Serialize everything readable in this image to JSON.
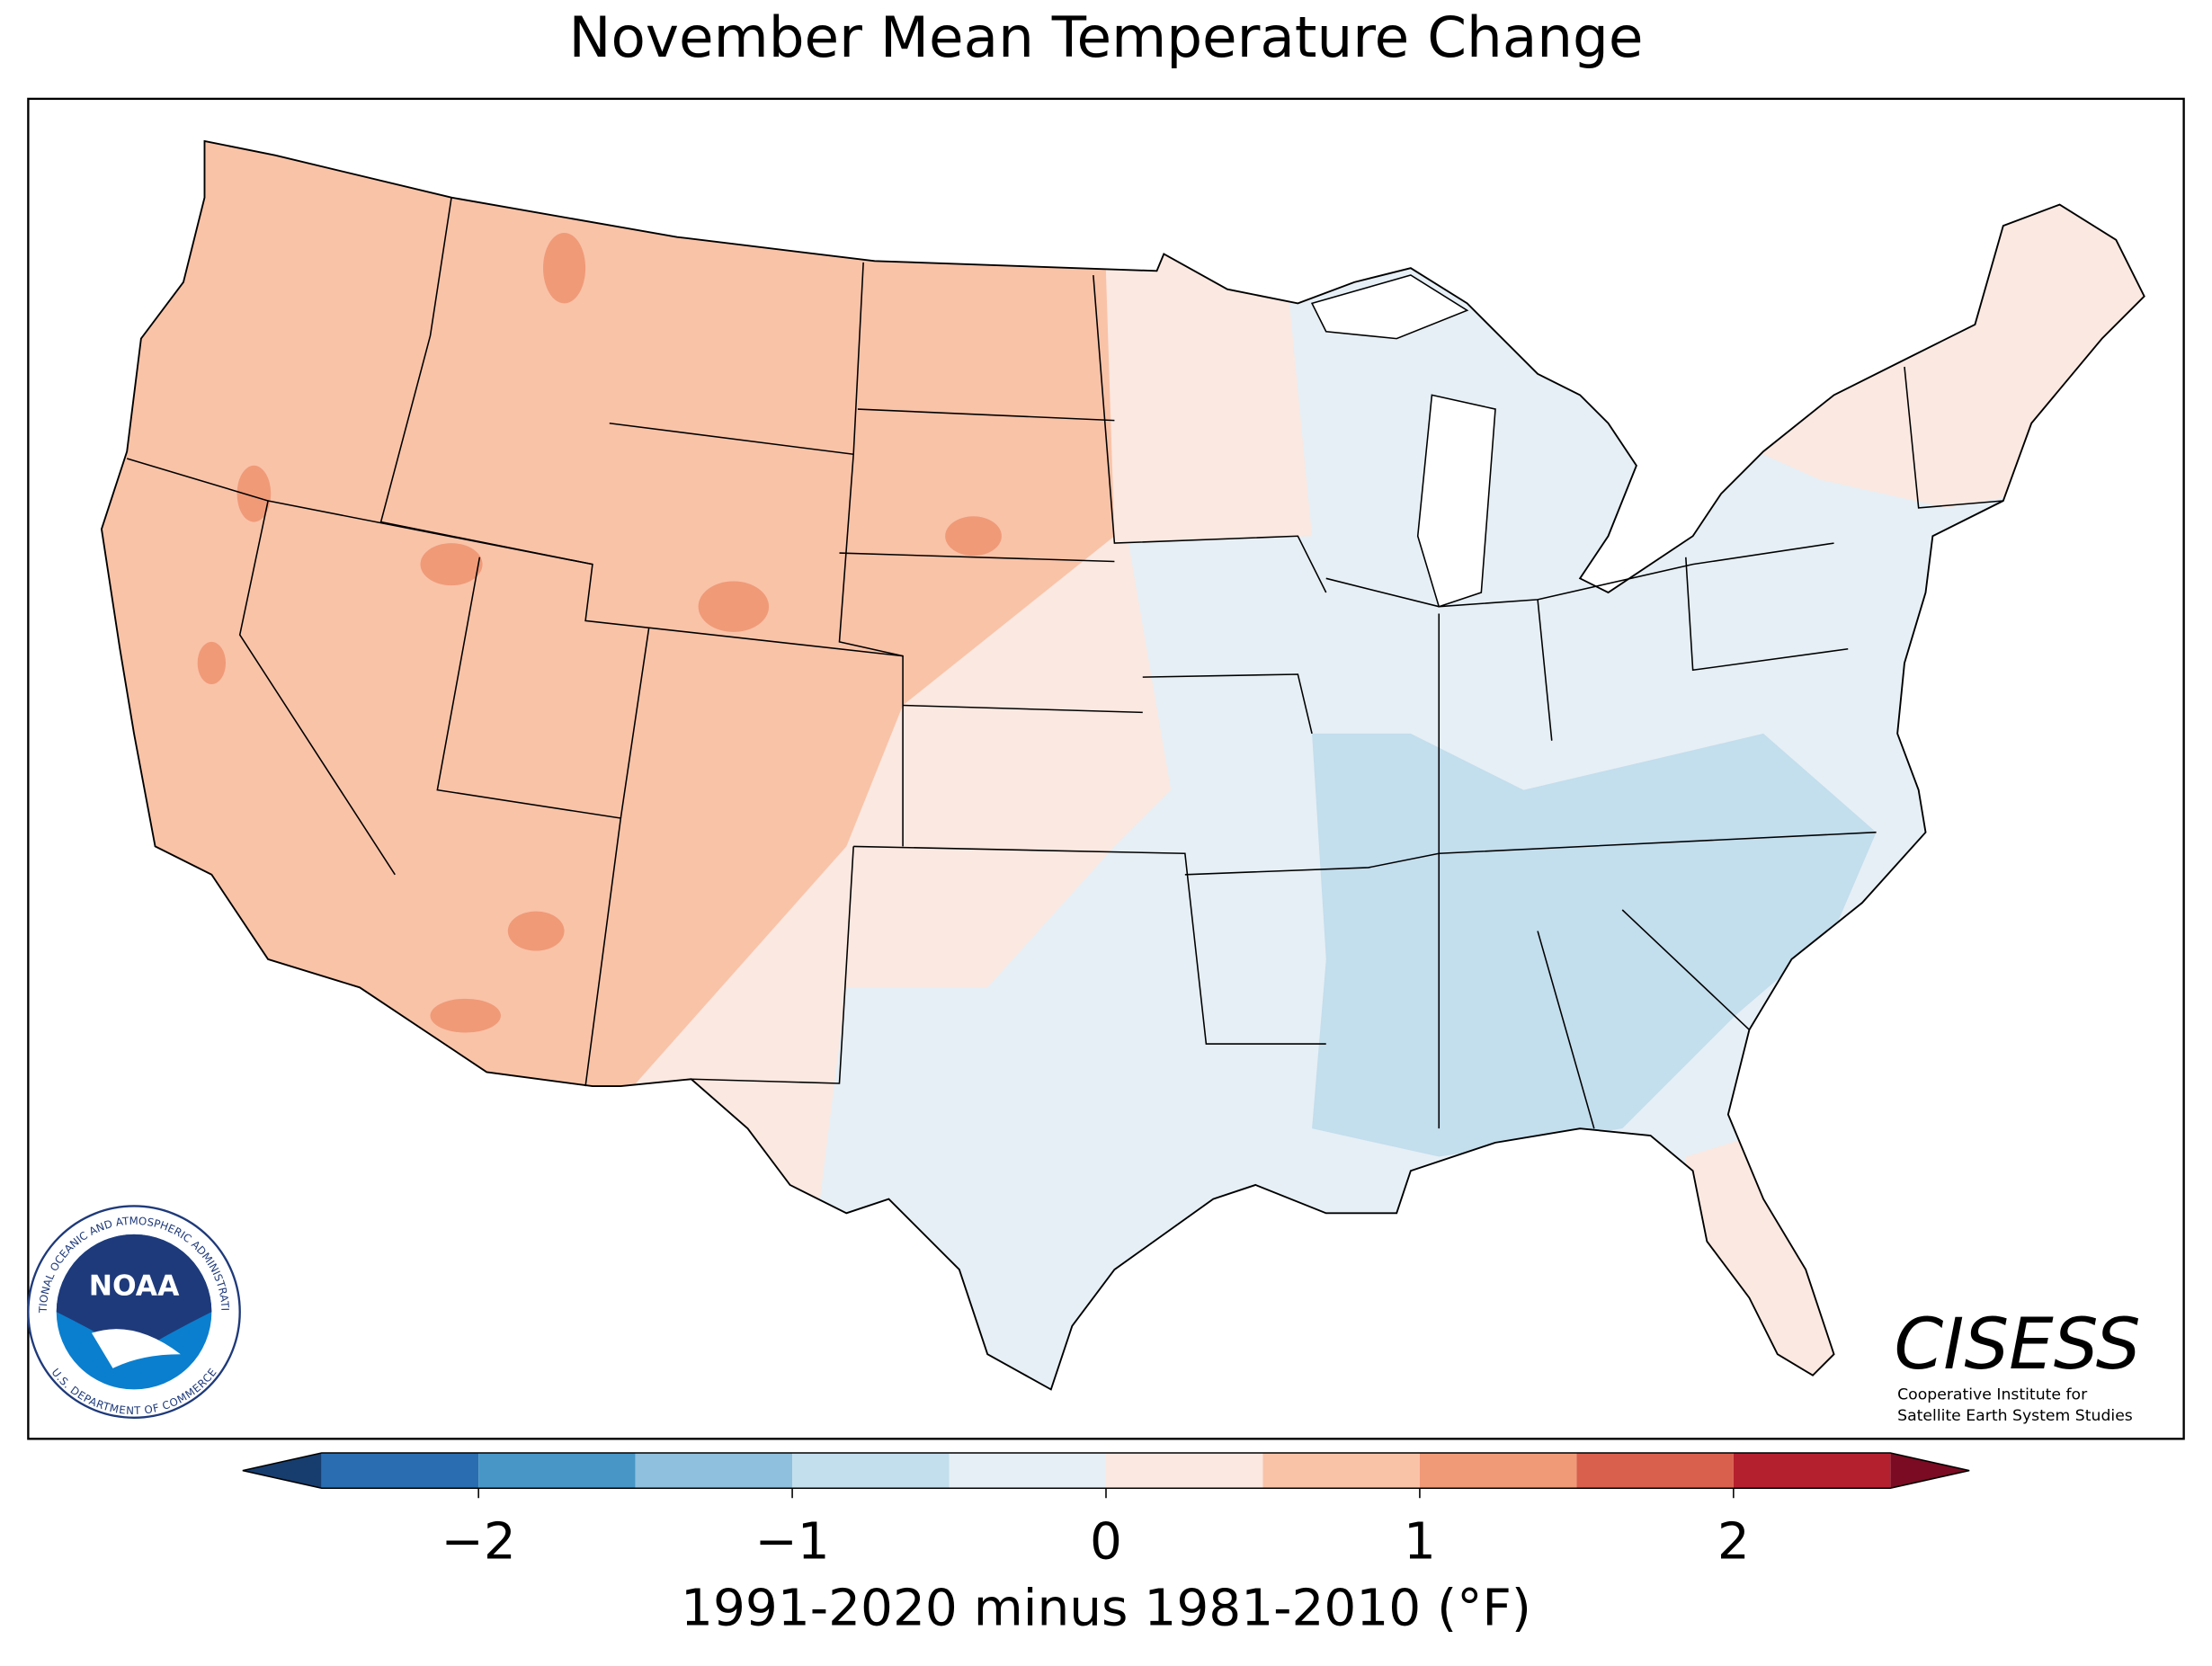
{
  "title": "November Mean Temperature Change",
  "map": {
    "values": [
      -0.3,
      0.3,
      0.7,
      0.2,
      -0.7,
      0.3,
      1.2,
      1.2,
      1.2,
      1.2,
      1.2,
      1.2,
      1.2,
      1.2
    ]
  },
  "colorbar": {
    "levels": [
      -2.5,
      -2,
      -1.5,
      -1,
      -0.5,
      0,
      0.5,
      1,
      1.5,
      2,
      2.5
    ],
    "colors": [
      "#2a6db0",
      "#4796c6",
      "#8fc0dd",
      "#c3deed",
      "#e6eff5",
      "#fae8e1",
      "#f9c3a8",
      "#f09a78",
      "#d9604d",
      "#b5202e"
    ],
    "extend_colors": [
      "#163d6e",
      "#7a0b22"
    ],
    "ticks": [
      {
        "value": -2,
        "label": "−2"
      },
      {
        "value": -1,
        "label": "−1"
      },
      0,
      1,
      2
    ],
    "label": "1991-2020 minus 1981-2010 (°F)"
  },
  "logos": {
    "noaa": {
      "name": "NOAA",
      "ring_top": "NATIONAL OCEANIC AND ATMOSPHERIC ADMINISTRATION",
      "ring_bottom": "U.S. DEPARTMENT OF COMMERCE"
    },
    "cisess": {
      "name": "CISESS",
      "line1": "Cooperative Institute for",
      "line2": "Satellite Earth System Studies"
    }
  }
}
